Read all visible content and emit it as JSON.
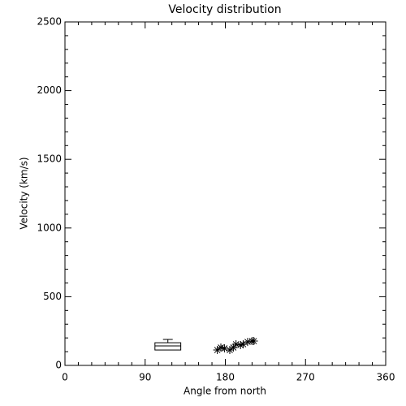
{
  "chart_data": {
    "type": "scatter",
    "title": "Velocity distribution",
    "x_label": "Angle from north",
    "y_label": "Velocity (km/s)",
    "xlim": [
      0,
      360
    ],
    "xticks": [
      0,
      90,
      180,
      270,
      360
    ],
    "ylim": [
      0,
      2500
    ],
    "yticks": [
      0,
      500,
      1000,
      1500,
      2000,
      2500
    ],
    "x_minor_per_major": 6,
    "y_minor_per_major": 5,
    "color": "#000000",
    "marker": "asterisk",
    "x": [
      171,
      175,
      179,
      185,
      189,
      192,
      197,
      200,
      205,
      210,
      212
    ],
    "values": [
      112,
      130,
      124,
      112,
      130,
      154,
      148,
      154,
      171,
      177,
      177
    ],
    "box": {
      "x_range": [
        101,
        130
      ],
      "q1": 112,
      "median": 142,
      "q3": 165,
      "max": 189
    }
  }
}
